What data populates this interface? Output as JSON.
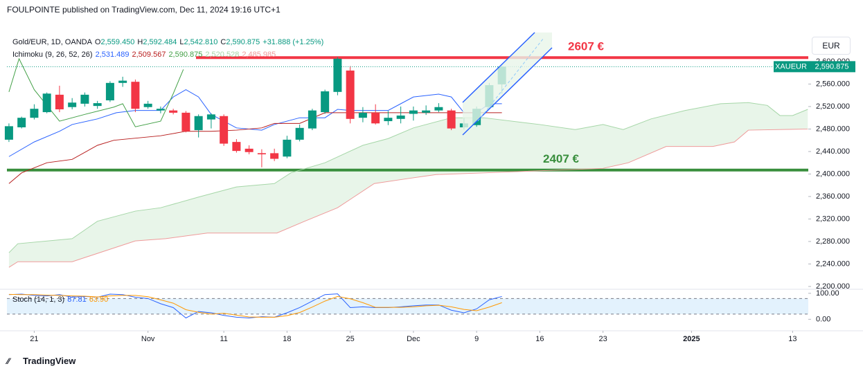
{
  "header": {
    "publisher": "FOULPOINTE published on TradingView.com, Dec 11, 2024 19:16 UTC+1",
    "brand": "TradingView",
    "currency": "EUR"
  },
  "chart_data": [
    {
      "type": "candlestick",
      "title": "Gold/EUR, 1D, OANDA",
      "legend_fields": [
        {
          "key": "O",
          "label": "2,559.450"
        },
        {
          "key": "H",
          "label": "2,592.484"
        },
        {
          "key": "L",
          "label": "2,542.810"
        },
        {
          "key": "C",
          "label": "2,590.875"
        }
      ],
      "change": "+31.888 (+1.25%)",
      "up_color": "#089981",
      "down_color": "#f23645",
      "x": [
        0,
        1,
        2,
        3,
        4,
        5,
        6,
        7,
        8,
        9,
        10,
        11,
        12,
        13,
        14,
        15,
        16,
        17,
        18,
        19,
        20,
        21,
        22,
        23,
        24,
        25,
        26,
        27,
        28,
        29,
        30,
        31,
        32,
        33,
        34,
        35,
        36,
        37,
        38,
        39
      ],
      "open": [
        2461,
        2483,
        2500,
        2510,
        2541,
        2519,
        2525,
        2521,
        2531,
        2562,
        2564,
        2519,
        2513,
        2513,
        2509,
        2478,
        2497,
        2503,
        2457,
        2445,
        2437,
        2437,
        2431,
        2461,
        2481,
        2510,
        2546,
        2584,
        2500,
        2509,
        2494,
        2498,
        2507,
        2509,
        2513,
        2513,
        2483,
        2487,
        2519,
        2559.45
      ],
      "high": [
        2490,
        2502,
        2524,
        2545,
        2557,
        2535,
        2545,
        2530,
        2565,
        2573,
        2568,
        2530,
        2520,
        2516,
        2512,
        2506,
        2508,
        2506,
        2462,
        2451,
        2444,
        2445,
        2468,
        2488,
        2516,
        2550,
        2608,
        2592,
        2519,
        2524,
        2512,
        2520,
        2520,
        2522,
        2526,
        2516,
        2500,
        2520,
        2562,
        2592.484
      ],
      "low": [
        2457,
        2481,
        2497,
        2508,
        2510,
        2515,
        2520,
        2516,
        2528,
        2555,
        2510,
        2516,
        2508,
        2506,
        2474,
        2465,
        2481,
        2450,
        2438,
        2435,
        2412,
        2423,
        2428,
        2458,
        2478,
        2507,
        2540,
        2490,
        2492,
        2488,
        2487,
        2490,
        2495,
        2505,
        2510,
        2478,
        2479,
        2484,
        2516,
        2542.81
      ],
      "close": [
        2485,
        2500,
        2516,
        2543,
        2515,
        2527,
        2541,
        2526,
        2562,
        2566,
        2516,
        2525,
        2516,
        2509,
        2476,
        2503,
        2506,
        2454,
        2441,
        2439,
        2435,
        2427,
        2461,
        2482,
        2513,
        2547,
        2605,
        2498,
        2509,
        2490,
        2500,
        2504,
        2513,
        2513,
        2519,
        2481,
        2490,
        2516,
        2558,
        2590.875
      ],
      "last_price": {
        "symbol": "XAUEUR",
        "label": "2,590.875"
      },
      "xlim": [
        -0.16,
        63.24
      ],
      "ylim": [
        2195,
        2675
      ],
      "yticks": [
        {
          "value": 2600,
          "label": "2,600.000"
        },
        {
          "value": 2560,
          "label": "2,560.000"
        },
        {
          "value": 2520,
          "label": "2,520.000"
        },
        {
          "value": 2480,
          "label": "2,480.000"
        },
        {
          "value": 2440,
          "label": "2,440.000"
        },
        {
          "value": 2400,
          "label": "2,400.000"
        },
        {
          "value": 2360,
          "label": "2,360.000"
        },
        {
          "value": 2320,
          "label": "2,320.000"
        },
        {
          "value": 2280,
          "label": "2,280.000"
        },
        {
          "value": 2240,
          "label": "2,240.000"
        },
        {
          "value": 2200,
          "label": "2,200.000"
        }
      ],
      "xticks": [
        {
          "value": 2,
          "label": "21"
        },
        {
          "value": 11,
          "label": "Nov"
        },
        {
          "value": 17,
          "label": "11"
        },
        {
          "value": 22,
          "label": "18"
        },
        {
          "value": 27,
          "label": "25"
        },
        {
          "value": 32,
          "label": "Dec"
        },
        {
          "value": 37,
          "label": "9"
        },
        {
          "value": 42,
          "label": "16"
        },
        {
          "value": 47,
          "label": "23"
        },
        {
          "value": 54,
          "label": "2025"
        },
        {
          "value": 62,
          "label": "13"
        }
      ],
      "grid": false,
      "levels": [
        {
          "value": 2607,
          "label": "2607 €",
          "color": "#f23645"
        },
        {
          "value": 2407,
          "label": "2407 €",
          "color": "#388e3c"
        }
      ],
      "ichimoku": {
        "title": "Ichimoku (9, 26, 52, 26)",
        "series": [
          {
            "label": "2,531.489",
            "color": "#2962ff",
            "x": [
              0,
              2,
              4,
              5,
              7,
              8.5,
              10,
              12,
              13,
              14,
              15,
              16,
              18,
              20,
              21,
              23,
              25,
              26,
              27,
              30,
              31,
              32,
              34,
              35,
              36,
              37,
              38,
              39
            ],
            "values": [
              2431,
              2457,
              2476,
              2488,
              2498,
              2509,
              2513,
              2513,
              2537,
              2550,
              2537,
              2506,
              2482,
              2478,
              2488,
              2500,
              2500,
              2515,
              2513,
              2513,
              2525,
              2537,
              2542,
              2537,
              2509,
              2509,
              2525,
              2525
            ]
          },
          {
            "label": "2,509.567",
            "color": "#b71c1c",
            "x": [
              0,
              1,
              3,
              5,
              7,
              8.3,
              12,
              14,
              16,
              18,
              20,
              21,
              23,
              25,
              26.5,
              39
            ],
            "values": [
              2383,
              2402,
              2420,
              2426,
              2451,
              2460,
              2468,
              2476,
              2476,
              2478,
              2482,
              2490,
              2490,
              2509,
              2509,
              2509
            ]
          },
          {
            "label": "2,590.875",
            "color": "#43a047",
            "x": [
              0,
              0.8,
              2,
              4,
              6,
              8.3,
              9,
              10,
              12,
              13,
              13.8
            ],
            "values": [
              2546,
              2605,
              2550,
              2494,
              2506,
              2519,
              2525,
              2484,
              2494,
              2543,
              2586
            ]
          },
          {
            "label": "2,520.528",
            "color": "#a5d6a7",
            "x": [
              0,
              0.7,
              5,
              7,
              10,
              12,
              15,
              18,
              21,
              22.3,
              25,
              28,
              30,
              32,
              35,
              37.6,
              42,
              44.8,
              47,
              48.6,
              50.8,
              53.5,
              56.3,
              58.5,
              60,
              61,
              62,
              63.2
            ],
            "values": [
              2260,
              2276,
              2285,
              2316,
              2334,
              2340,
              2359,
              2377,
              2383,
              2402,
              2420,
              2451,
              2463,
              2482,
              2500,
              2500,
              2488,
              2479,
              2488,
              2479,
              2498,
              2513,
              2525,
              2527,
              2522,
              2504,
              2504,
              2515
            ]
          },
          {
            "label": "2,485.985",
            "color": "#ef9a9a",
            "x": [
              0,
              0.7,
              5,
              10,
              12.4,
              15.7,
              21.2,
              23.4,
              26,
              28.9,
              31.6,
              33.8,
              37.6,
              47,
              49,
              52,
              55.7,
              57.4,
              58.5,
              63.2
            ],
            "values": [
              2234,
              2244,
              2244,
              2281,
              2285,
              2295,
              2295,
              2316,
              2340,
              2383,
              2392,
              2399,
              2402,
              2410,
              2420,
              2449,
              2449,
              2457,
              2478,
              2480
            ]
          }
        ],
        "cloud_color": "#e8f5e9"
      }
    },
    {
      "type": "line",
      "title": "Stoch (14, 1, 3)",
      "series": [
        {
          "label": "87.81",
          "color": "#2962ff",
          "values": [
            95,
            97,
            92,
            90,
            95,
            85,
            88,
            85,
            97,
            95,
            85,
            80,
            60,
            45,
            5,
            30,
            25,
            15,
            8,
            5,
            10,
            8,
            25,
            45,
            70,
            95,
            98,
            45,
            48,
            45,
            45,
            48,
            52,
            55,
            55,
            35,
            25,
            40,
            75,
            87.81
          ]
        },
        {
          "label": "63.90",
          "color": "#ff9800",
          "values": [
            96,
            95,
            95,
            93,
            92,
            90,
            89,
            86,
            90,
            92,
            92,
            87,
            75,
            62,
            37,
            27,
            20,
            23,
            16,
            9,
            8,
            8,
            14,
            26,
            47,
            70,
            88,
            79,
            64,
            46,
            46,
            46,
            48,
            52,
            54,
            48,
            38,
            33,
            47,
            63.9
          ]
        }
      ],
      "ylim": [
        -44.4,
        115.6
      ],
      "yticks": [
        {
          "value": 100,
          "label": "100.00"
        },
        {
          "value": 0,
          "label": "0.00"
        }
      ],
      "band": [
        20,
        80
      ],
      "band_color": "#e3f2fd"
    }
  ]
}
